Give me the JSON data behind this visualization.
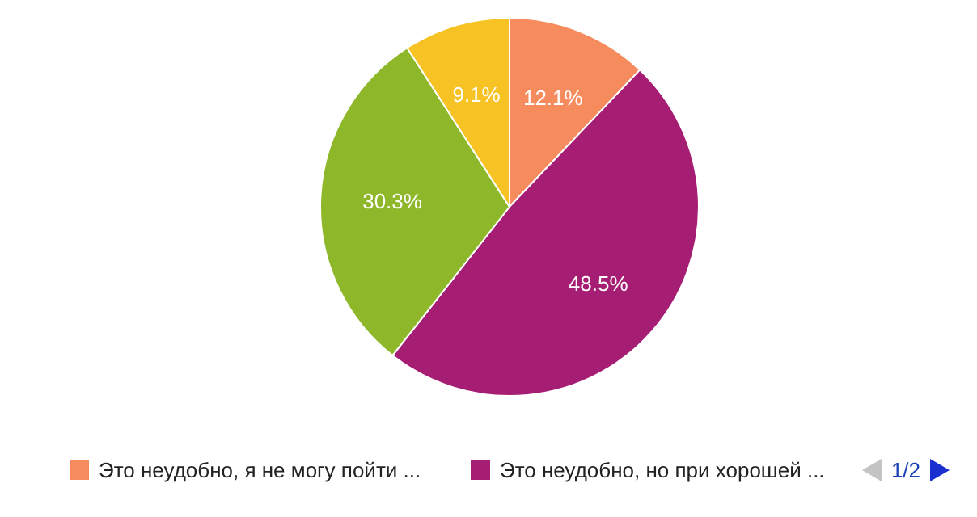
{
  "chart_data": {
    "type": "pie",
    "categories": [
      "Это неудобно, я не могу пойти ...",
      "Это неудобно, но при хорошей ...",
      null,
      null
    ],
    "values": [
      12.1,
      48.5,
      30.3,
      9.1
    ],
    "colors": [
      "#f68c5e",
      "#a51e74",
      "#8eb82a",
      "#f7c224"
    ],
    "value_labels": [
      "12.1%",
      "48.5%",
      "30.3%",
      "9.1%"
    ],
    "legend": "bottom",
    "annotations": [
      "1/2"
    ]
  }
}
